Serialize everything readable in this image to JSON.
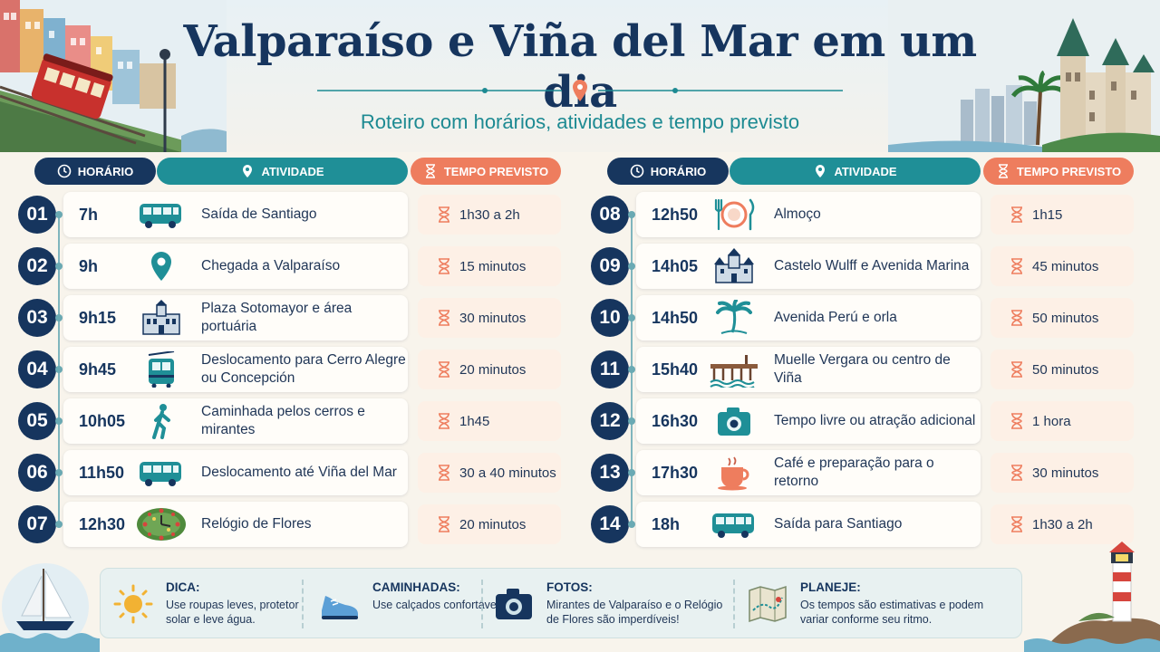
{
  "header": {
    "title": "Valparaíso e Viña del Mar em um dia",
    "subtitle": "Roteiro com horários, atividades e tempo previsto"
  },
  "columns": {
    "time": "HORÁRIO",
    "activity": "ATIVIDADE",
    "duration": "TEMPO PREVISTO"
  },
  "left_rows": [
    {
      "num": "01",
      "time": "7h",
      "icon": "bus-icon",
      "activity": "Saída de Santiago",
      "duration": "1h30 a 2h"
    },
    {
      "num": "02",
      "time": "9h",
      "icon": "location-pin-icon",
      "activity": "Chegada a Valparaíso",
      "duration": "15 minutos"
    },
    {
      "num": "03",
      "time": "9h15",
      "icon": "building-icon",
      "activity": "Plaza Sotomayor e área portuária",
      "duration": "30 minutos"
    },
    {
      "num": "04",
      "time": "9h45",
      "icon": "funicular-icon",
      "activity": "Deslocamento para Cerro Alegre ou Concepción",
      "duration": "20 minutos"
    },
    {
      "num": "05",
      "time": "10h05",
      "icon": "walking-person-icon",
      "activity": "Caminhada pelos cerros e mirantes",
      "duration": "1h45"
    },
    {
      "num": "06",
      "time": "11h50",
      "icon": "bus-icon",
      "activity": "Deslocamento até Viña del Mar",
      "duration": "30 a 40 minutos"
    },
    {
      "num": "07",
      "time": "12h30",
      "icon": "flower-clock-icon",
      "activity": "Relógio de Flores",
      "duration": "20 minutos"
    }
  ],
  "right_rows": [
    {
      "num": "08",
      "time": "12h50",
      "icon": "plate-cutlery-icon",
      "activity": "Almoço",
      "duration": "1h15"
    },
    {
      "num": "09",
      "time": "14h05",
      "icon": "castle-icon",
      "activity": "Castelo Wulff e Avenida Marina",
      "duration": "45 minutos"
    },
    {
      "num": "10",
      "time": "14h50",
      "icon": "palm-tree-icon",
      "activity": "Avenida Perú e orla",
      "duration": "50 minutos"
    },
    {
      "num": "11",
      "time": "15h40",
      "icon": "pier-icon",
      "activity": "Muelle Vergara ou centro de Viña",
      "duration": "50 minutos"
    },
    {
      "num": "12",
      "time": "16h30",
      "icon": "camera-icon",
      "activity": "Tempo livre ou atração adicional",
      "duration": "1 hora"
    },
    {
      "num": "13",
      "time": "17h30",
      "icon": "coffee-cup-icon",
      "activity": "Café e preparação para o retorno",
      "duration": "30 minutos"
    },
    {
      "num": "14",
      "time": "18h",
      "icon": "bus-icon",
      "activity": "Saída para Santiago",
      "duration": "1h30 a 2h"
    }
  ],
  "tips": [
    {
      "icon": "sun-icon",
      "title": "DICA:",
      "text": "Use roupas leves, protetor solar e leve água."
    },
    {
      "icon": "sneaker-icon",
      "title": "CAMINHADAS:",
      "text": "Use calçados confortáveis."
    },
    {
      "icon": "camera-icon",
      "title": "FOTOS:",
      "text": "Mirantes de Valparaíso e o Relógio de Flores são imperdíveis!"
    },
    {
      "icon": "map-icon",
      "title": "PLANEJE:",
      "text": "Os tempos são estimativas e podem variar conforme seu ritmo."
    }
  ],
  "colors": {
    "navy": "#16355e",
    "teal": "#1f8f97",
    "coral": "#ee7d5e",
    "background": "#f8f4ec"
  }
}
